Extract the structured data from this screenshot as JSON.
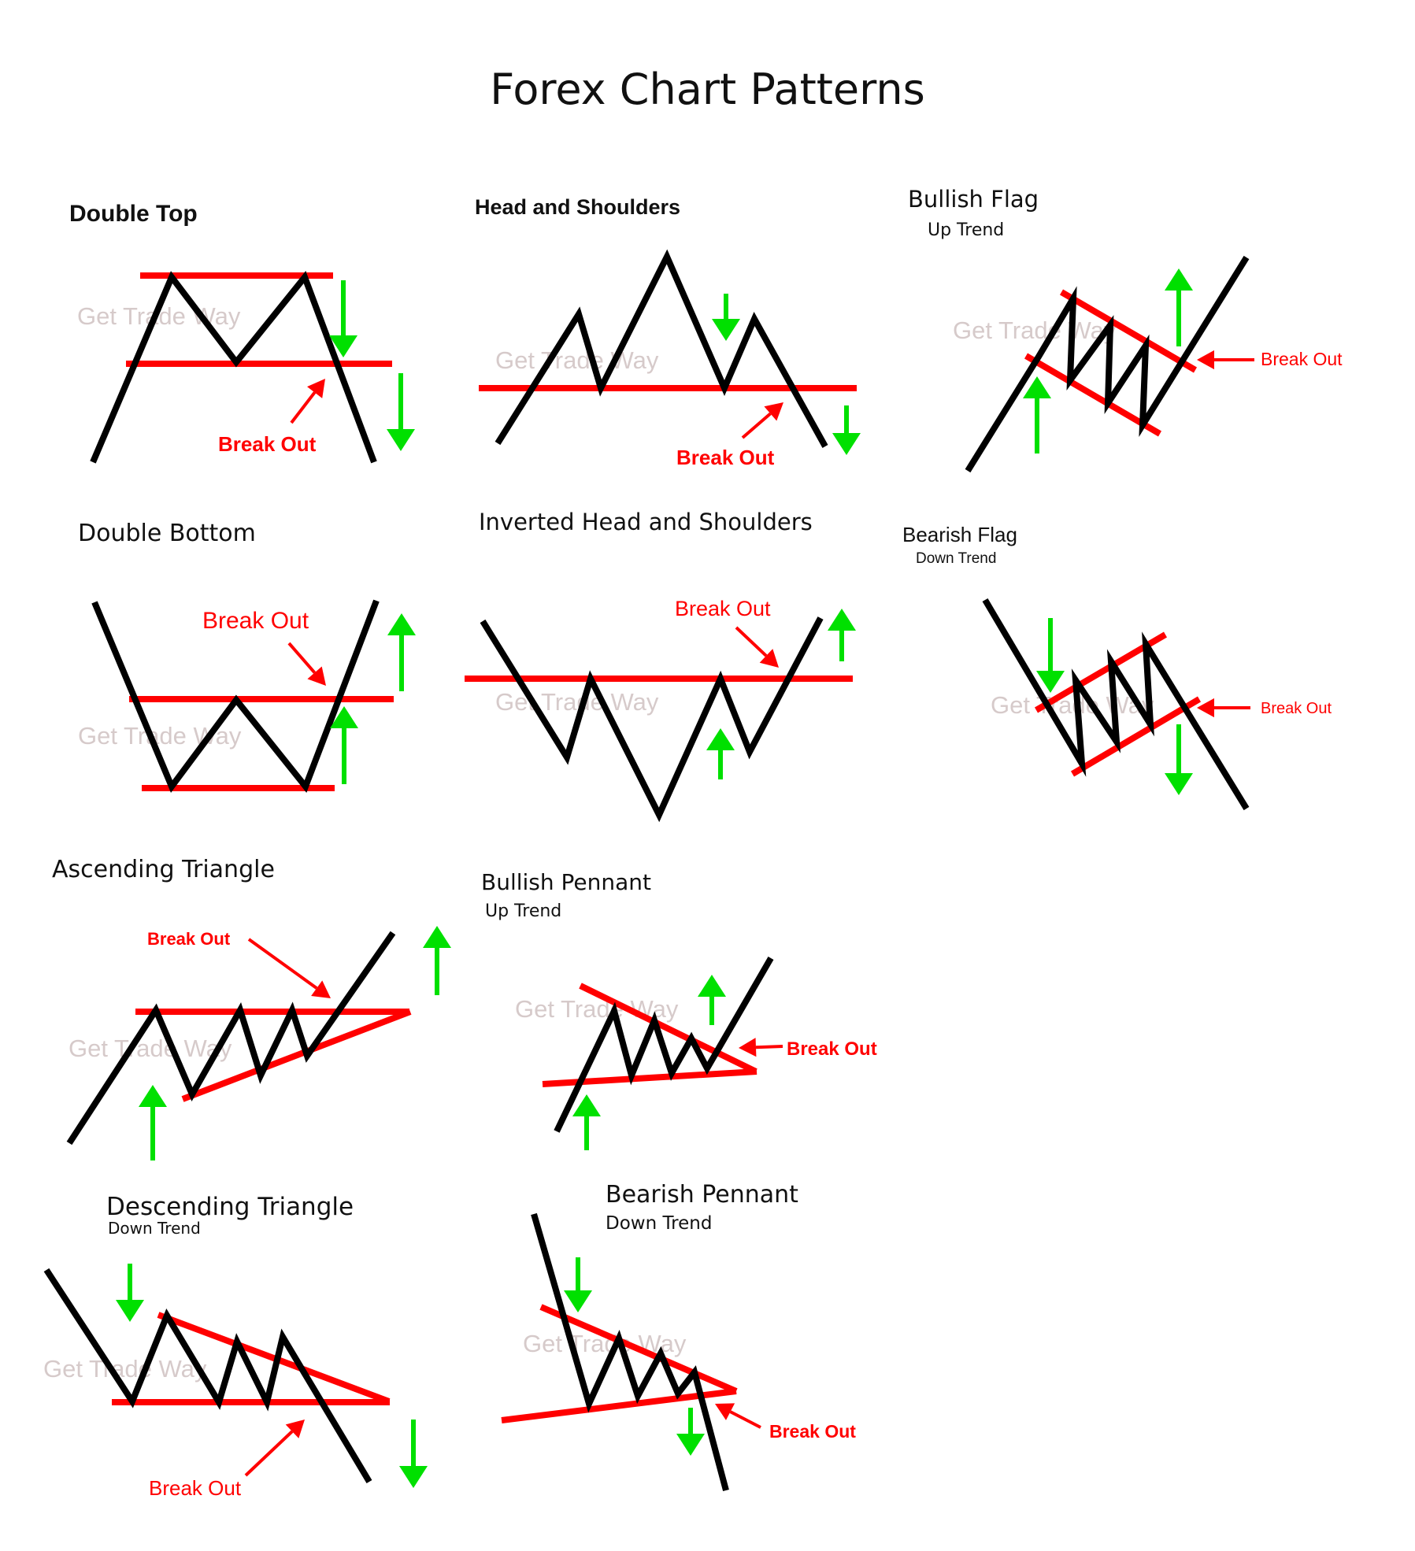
{
  "title": "Forex Chart Patterns",
  "watermark": "Get Trade Way",
  "break_label": "Break Out",
  "colors": {
    "price": "#000000",
    "level": "#ff0000",
    "arrow": "#00e000",
    "watermark": "#c9b9b9",
    "label": "#ff0000"
  },
  "patterns": {
    "double_top": {
      "title": "Double Top"
    },
    "head_shoulders": {
      "title": "Head and Shoulders"
    },
    "bullish_flag": {
      "title": "Bullish Flag",
      "subtitle": "Up Trend"
    },
    "double_bottom": {
      "title": "Double Bottom"
    },
    "inv_head_shoulders": {
      "title": "Inverted Head and Shoulders"
    },
    "bearish_flag": {
      "title": "Bearish Flag",
      "subtitle": "Down Trend"
    },
    "ascending_triangle": {
      "title": "Ascending Triangle"
    },
    "bullish_pennant": {
      "title": "Bullish Pennant",
      "subtitle": "Up Trend"
    },
    "descending_triangle": {
      "title": "Descending Triangle",
      "subtitle": "Down Trend"
    },
    "bearish_pennant": {
      "title": "Bearish Pennant",
      "subtitle": "Down Trend"
    }
  }
}
